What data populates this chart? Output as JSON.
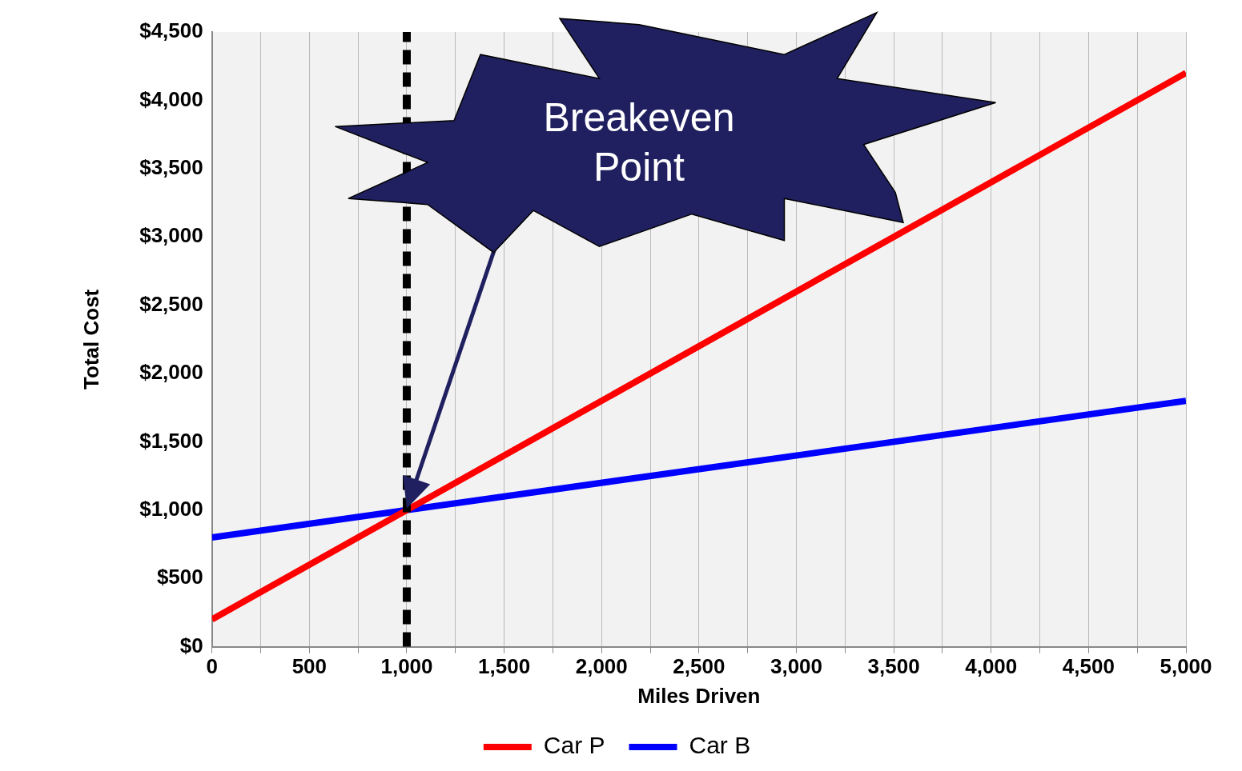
{
  "chart_data": {
    "type": "line",
    "xlabel": "Miles Driven",
    "ylabel": "Total Cost",
    "x": [
      0,
      1000,
      5000
    ],
    "series": [
      {
        "name": "Car P",
        "color": "#ff0000",
        "values": [
          200,
          1000,
          4200
        ]
      },
      {
        "name": "Car B",
        "color": "#0000ff",
        "values": [
          800,
          1000,
          1800
        ]
      }
    ],
    "xlim": [
      0,
      5000
    ],
    "xticks": [
      0,
      {
        "value": 250,
        "label": null
      },
      500,
      {
        "value": 750,
        "label": null
      },
      "1,000",
      {
        "value": 1250,
        "label": null
      },
      "1,500",
      {
        "value": 1750,
        "label": null
      },
      "2,000",
      {
        "value": 2250,
        "label": null
      },
      "2,500",
      {
        "value": 2750,
        "label": null
      },
      "3,000",
      {
        "value": 3250,
        "label": null
      },
      "3,500",
      {
        "value": 3750,
        "label": null
      },
      "4,000",
      {
        "value": 4250,
        "label": null
      },
      "4,500",
      {
        "value": 4750,
        "label": null
      },
      "5,000"
    ],
    "ylim": [
      0,
      4500
    ],
    "yticks": [
      {
        "value": 0,
        "label": "$0"
      },
      {
        "value": 500,
        "label": "$500"
      },
      {
        "value": 1000,
        "label": "$1,000"
      },
      {
        "value": 1500,
        "label": "$1,500"
      },
      {
        "value": 2000,
        "label": "$2,000"
      },
      {
        "value": 2500,
        "label": "$2,500"
      },
      {
        "value": 3000,
        "label": "$3,000"
      },
      {
        "value": 3500,
        "label": "$3,500"
      },
      {
        "value": 4000,
        "label": "$4,000"
      },
      {
        "value": 4500,
        "label": "$4,500"
      }
    ],
    "ref_lines": [
      {
        "axis": "x",
        "value": 1000,
        "color": "#000000",
        "line_style": "dashed"
      }
    ],
    "annotations": [
      "Breakeven Point"
    ],
    "grid": "x",
    "legend": "bottom",
    "marker": "none",
    "line_style": "solid"
  }
}
